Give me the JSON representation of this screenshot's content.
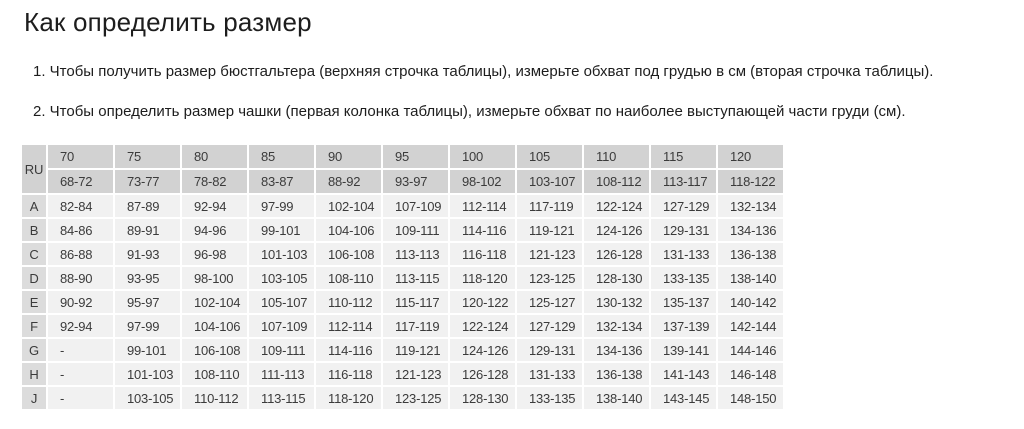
{
  "header": {
    "title": "Как определить размер"
  },
  "instructions": [
    "1. Чтобы получить размер бюстгальтера (верхняя строчка таблицы), измерьте обхват под грудью в см (вторая строчка таблицы).",
    "2. Чтобы определить размер чашки (первая колонка таблицы), измерьте обхват по наиболее выступающей части груди (см)."
  ],
  "size_table": {
    "corner_label": "RU",
    "band_sizes": [
      "70",
      "75",
      "80",
      "85",
      "90",
      "95",
      "100",
      "105",
      "110",
      "115",
      "120"
    ],
    "underbust_ranges": [
      "68-72",
      "73-77",
      "78-82",
      "83-87",
      "88-92",
      "93-97",
      "98-102",
      "103-107",
      "108-112",
      "113-117",
      "118-122"
    ],
    "cup_rows": [
      {
        "label": "A",
        "values": [
          "82-84",
          "87-89",
          "92-94",
          "97-99",
          "102-104",
          "107-109",
          "112-114",
          "117-119",
          "122-124",
          "127-129",
          "132-134"
        ]
      },
      {
        "label": "B",
        "values": [
          "84-86",
          "89-91",
          "94-96",
          "99-101",
          "104-106",
          "109-111",
          "114-116",
          "119-121",
          "124-126",
          "129-131",
          "134-136"
        ]
      },
      {
        "label": "C",
        "values": [
          "86-88",
          "91-93",
          "96-98",
          "101-103",
          "106-108",
          "113-113",
          "116-118",
          "121-123",
          "126-128",
          "131-133",
          "136-138"
        ]
      },
      {
        "label": "D",
        "values": [
          "88-90",
          "93-95",
          "98-100",
          "103-105",
          "108-110",
          "113-115",
          "118-120",
          "123-125",
          "128-130",
          "133-135",
          "138-140"
        ]
      },
      {
        "label": "E",
        "values": [
          "90-92",
          "95-97",
          "102-104",
          "105-107",
          "110-112",
          "115-117",
          "120-122",
          "125-127",
          "130-132",
          "135-137",
          "140-142"
        ]
      },
      {
        "label": "F",
        "values": [
          "92-94",
          "97-99",
          "104-106",
          "107-109",
          "112-114",
          "117-119",
          "122-124",
          "127-129",
          "132-134",
          "137-139",
          "142-144"
        ]
      },
      {
        "label": "G",
        "values": [
          "-",
          "99-101",
          "106-108",
          "109-111",
          "114-116",
          "119-121",
          "124-126",
          "129-131",
          "134-136",
          "139-141",
          "144-146"
        ]
      },
      {
        "label": "H",
        "values": [
          "-",
          "101-103",
          "108-110",
          "111-113",
          "116-118",
          "121-123",
          "126-128",
          "131-133",
          "136-138",
          "141-143",
          "146-148"
        ]
      },
      {
        "label": "J",
        "values": [
          "-",
          "103-105",
          "110-112",
          "113-115",
          "118-120",
          "123-125",
          "128-130",
          "133-135",
          "138-140",
          "143-145",
          "148-150"
        ]
      }
    ]
  },
  "colors": {
    "header_bg": "#d2d2d2",
    "label_bg": "#dcdcdc",
    "cell_bg": "#f1f1f1",
    "text": "#3b3b3b",
    "heading_text": "#1d1d1d"
  }
}
